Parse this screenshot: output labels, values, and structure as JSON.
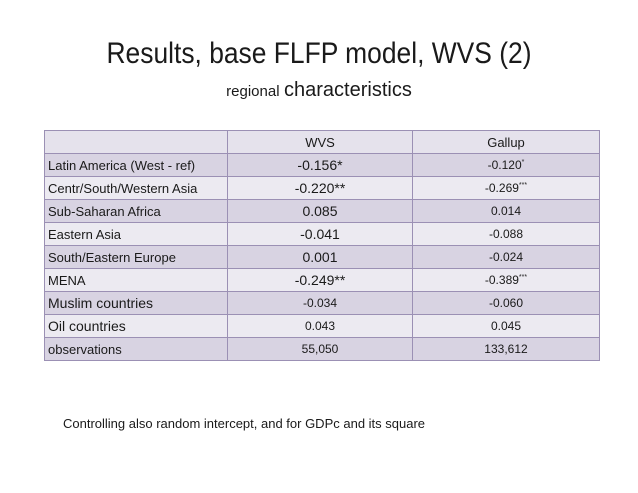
{
  "title": "Results, base FLFP model, WVS (2)",
  "subtitle": {
    "part1": "regional",
    "part2": "characteristics"
  },
  "table": {
    "headers": [
      "",
      "WVS",
      "Gallup"
    ],
    "rows": [
      {
        "label": "Latin America (West - ref)",
        "wvs": "-0.156*",
        "gallup": "-0.120",
        "gallup_sig": "*"
      },
      {
        "label": "Centr/South/Western Asia",
        "wvs": "-0.220**",
        "gallup": "-0.269",
        "gallup_sig": "***"
      },
      {
        "label": "Sub-Saharan Africa",
        "wvs": "0.085",
        "gallup": "0.014",
        "gallup_sig": ""
      },
      {
        "label": "Eastern Asia",
        "wvs": "-0.041",
        "gallup": "-0.088",
        "gallup_sig": ""
      },
      {
        "label": "South/Eastern Europe",
        "wvs": "0.001",
        "gallup": "-0.024",
        "gallup_sig": ""
      },
      {
        "label": "MENA",
        "wvs": "-0.249**",
        "gallup": "-0.389",
        "gallup_sig": "***"
      },
      {
        "label": "Muslim countries",
        "wvs": "-0.034",
        "gallup": "-0.060",
        "gallup_sig": ""
      },
      {
        "label": "Oil countries",
        "wvs": "0.043",
        "gallup": "0.045",
        "gallup_sig": ""
      },
      {
        "label": "observations",
        "wvs": "55,050",
        "gallup": "133,612",
        "gallup_sig": ""
      }
    ]
  },
  "footnote": "Controlling also random intercept, and for GDPc and its square"
}
